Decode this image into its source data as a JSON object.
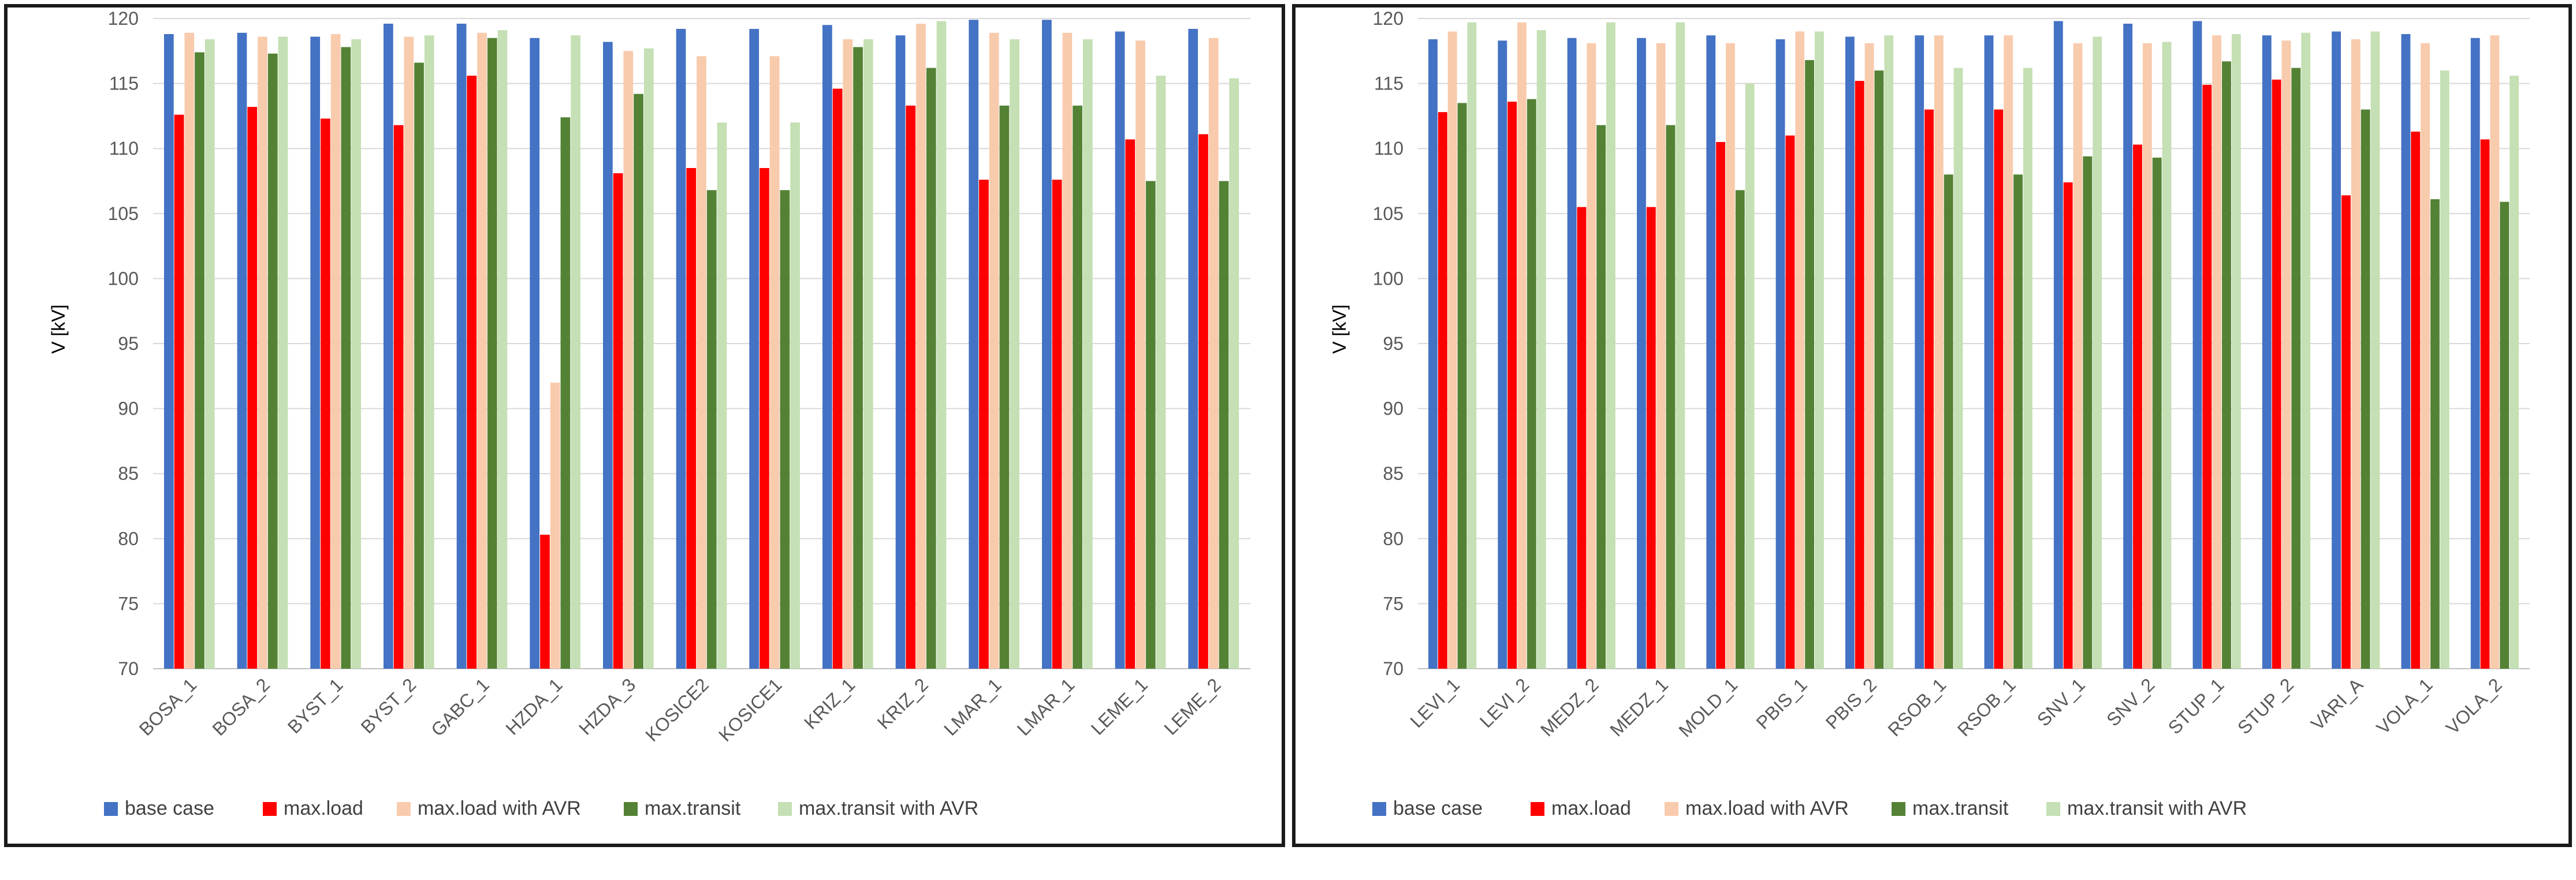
{
  "colors": {
    "series": [
      "#4472C4",
      "#FF0000",
      "#F8CBAD",
      "#548235",
      "#C5E0B4"
    ],
    "grid": "#d9d9d9",
    "axis_text": "#595959",
    "frame": "#1a1a1a"
  },
  "chart_data": [
    {
      "type": "bar",
      "title": "",
      "xlabel": "",
      "ylabel": "V [kV]",
      "ylim": [
        70,
        120
      ],
      "yticks": [
        70,
        75,
        80,
        85,
        90,
        95,
        100,
        105,
        110,
        115,
        120
      ],
      "ytick_labels": [
        "70",
        "75",
        "80",
        "85",
        "90",
        "95",
        "100",
        "105",
        "110",
        "115",
        "120"
      ],
      "grid": true,
      "legend_position": "bottom",
      "categories": [
        "BOSA_1",
        "BOSA_2",
        "BYST_1",
        "BYST_2",
        "GABC_1",
        "HZDA_1",
        "HZDA_3",
        "KOSICE2",
        "KOSICE1",
        "KRIZ_1",
        "KRIZ_2",
        "LMAR_1",
        "LMAR_1",
        "LEME_1",
        "LEME_2"
      ],
      "series": [
        {
          "name": "base case",
          "values": [
            118.8,
            118.9,
            118.6,
            119.6,
            119.6,
            118.5,
            118.2,
            119.2,
            119.2,
            119.5,
            118.7,
            119.9,
            119.9,
            119.0,
            119.2
          ]
        },
        {
          "name": "max.load",
          "values": [
            112.6,
            113.2,
            112.3,
            111.8,
            115.6,
            80.3,
            108.1,
            108.5,
            108.5,
            114.6,
            113.3,
            107.6,
            107.6,
            110.7,
            111.1
          ]
        },
        {
          "name": "max.load with AVR",
          "values": [
            118.9,
            118.6,
            118.8,
            118.6,
            118.9,
            92.0,
            117.5,
            117.1,
            117.1,
            118.4,
            119.6,
            118.9,
            118.9,
            118.3,
            118.5
          ]
        },
        {
          "name": "max.transit",
          "values": [
            117.4,
            117.3,
            117.8,
            116.6,
            118.5,
            112.4,
            114.2,
            106.8,
            106.8,
            117.8,
            116.2,
            113.3,
            113.3,
            107.5,
            107.5
          ]
        },
        {
          "name": "max.transit with AVR",
          "values": [
            118.4,
            118.6,
            118.4,
            118.7,
            119.1,
            118.7,
            117.7,
            112.0,
            112.0,
            118.4,
            119.8,
            118.4,
            118.4,
            115.6,
            115.4
          ]
        }
      ]
    },
    {
      "type": "bar",
      "title": "",
      "xlabel": "",
      "ylabel": "V [kV]",
      "ylim": [
        70,
        120
      ],
      "yticks": [
        70,
        75,
        80,
        85,
        90,
        95,
        100,
        105,
        110,
        115,
        120
      ],
      "ytick_labels": [
        "70",
        "75",
        "80",
        "85",
        "90",
        "95",
        "100",
        "105",
        "110",
        "115",
        "120"
      ],
      "grid": true,
      "legend_position": "bottom",
      "categories": [
        "LEVI_1",
        "LEVI_2",
        "MEDZ_2",
        "MEDZ_1",
        "MOLD_1",
        "PBIS_1",
        "PBIS_2",
        "RSOB_1",
        "RSOB_1",
        "SNV_1",
        "SNV_2",
        "STUP_1",
        "STUP_2",
        "VARI_A",
        "VOLA_1",
        "VOLA_2"
      ],
      "series": [
        {
          "name": "base case",
          "values": [
            118.4,
            118.3,
            118.5,
            118.5,
            118.7,
            118.4,
            118.6,
            118.7,
            118.7,
            119.8,
            119.6,
            119.8,
            118.7,
            119.0,
            118.8,
            118.5
          ]
        },
        {
          "name": "max.load",
          "values": [
            112.8,
            113.6,
            105.5,
            105.5,
            110.5,
            111.0,
            115.2,
            113.0,
            113.0,
            107.4,
            110.3,
            114.9,
            115.3,
            106.4,
            111.3,
            110.7
          ]
        },
        {
          "name": "max.load with AVR",
          "values": [
            119.0,
            119.7,
            118.1,
            118.1,
            118.1,
            119.0,
            118.1,
            118.7,
            118.7,
            118.1,
            118.1,
            118.7,
            118.3,
            118.4,
            118.1,
            118.7
          ]
        },
        {
          "name": "max.transit",
          "values": [
            113.5,
            113.8,
            111.8,
            111.8,
            106.8,
            116.8,
            116.0,
            108.0,
            108.0,
            109.4,
            109.3,
            116.7,
            116.2,
            113.0,
            106.1,
            105.9
          ]
        },
        {
          "name": "max.transit with AVR",
          "values": [
            119.7,
            119.1,
            119.7,
            119.7,
            115.0,
            119.0,
            118.7,
            116.2,
            116.2,
            118.6,
            118.2,
            118.8,
            118.9,
            119.0,
            116.0,
            115.6
          ]
        }
      ]
    }
  ]
}
